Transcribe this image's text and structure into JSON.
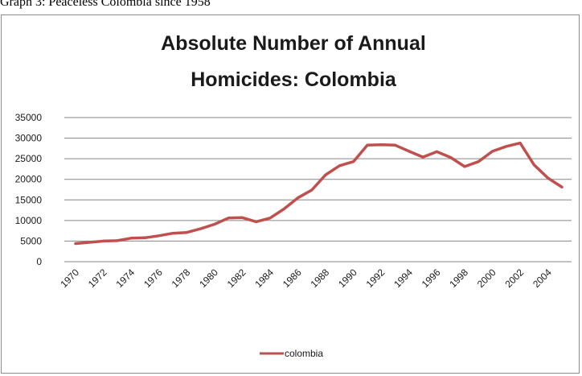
{
  "caption": "Graph 3: Peaceless Colombia since 1958",
  "chart_data": {
    "type": "line",
    "title_lines": [
      "Absolute Number of  Annual",
      "Homicides: Colombia"
    ],
    "xlabel": "",
    "ylabel": "",
    "ylim": [
      0,
      35000
    ],
    "y_ticks": [
      0,
      5000,
      10000,
      15000,
      20000,
      25000,
      30000,
      35000
    ],
    "x_tick_labels": [
      "1970",
      "1972",
      "1974",
      "1976",
      "1978",
      "1980",
      "1982",
      "1984",
      "1986",
      "1988",
      "1990",
      "1992",
      "1994",
      "1996",
      "1998",
      "2000",
      "2002",
      "2004"
    ],
    "grid": "horizontal",
    "legend_position": "bottom",
    "colors": {
      "series": "#c0504d",
      "grid": "#868686"
    },
    "x": [
      1970,
      1971,
      1972,
      1973,
      1974,
      1975,
      1976,
      1977,
      1978,
      1979,
      1980,
      1981,
      1982,
      1983,
      1984,
      1985,
      1986,
      1987,
      1988,
      1989,
      1990,
      1991,
      1992,
      1993,
      1994,
      1995,
      1996,
      1997,
      1998,
      1999,
      2000,
      2001,
      2002,
      2003,
      2004,
      2005
    ],
    "series": [
      {
        "name": "colombia",
        "values": [
          4400,
          4700,
          5000,
          5100,
          5700,
          5800,
          6300,
          6900,
          7100,
          8000,
          9100,
          10600,
          10700,
          9700,
          10600,
          12800,
          15500,
          17400,
          21100,
          23300,
          24300,
          28300,
          28400,
          28300,
          26800,
          25400,
          26700,
          25300,
          23100,
          24300,
          26800,
          28000,
          28800,
          23500,
          20300,
          18100
        ]
      }
    ]
  }
}
